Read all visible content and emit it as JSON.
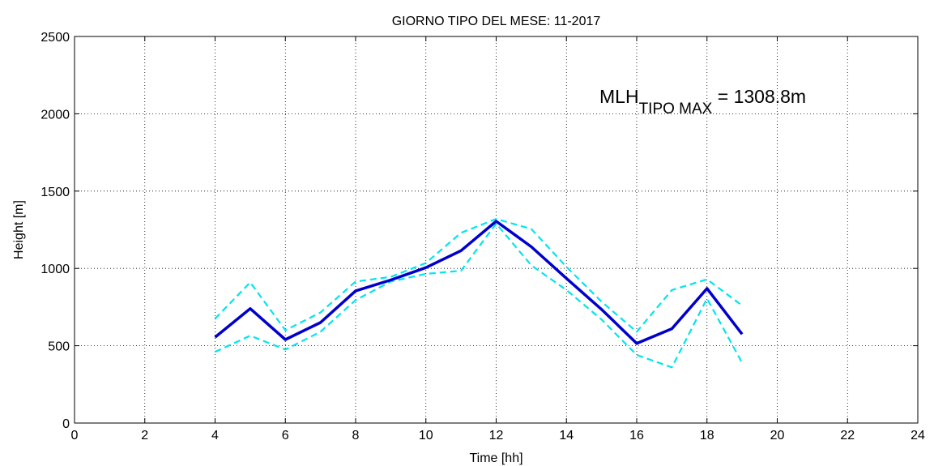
{
  "chart_data": {
    "type": "line",
    "title": "GIORNO TIPO DEL MESE:  11-2017",
    "xlabel": "Time [hh]",
    "ylabel": "Height [m]",
    "xlim": [
      0,
      24
    ],
    "ylim": [
      0,
      2500
    ],
    "xticks": [
      0,
      2,
      4,
      6,
      8,
      10,
      12,
      14,
      16,
      18,
      20,
      22,
      24
    ],
    "yticks": [
      0,
      500,
      1000,
      1500,
      2000,
      2500
    ],
    "grid": true,
    "x": [
      4,
      5,
      6,
      7,
      8,
      9,
      10,
      11,
      12,
      13,
      14,
      15,
      16,
      17,
      18,
      19
    ],
    "series": [
      {
        "style": "solid",
        "color": "#0000cc",
        "values": [
          555,
          740,
          540,
          650,
          855,
          925,
          1005,
          1115,
          1305,
          1140,
          935,
          735,
          515,
          610,
          870,
          575
        ]
      },
      {
        "style": "dashed",
        "color": "#00e5ee",
        "values": [
          675,
          910,
          600,
          715,
          915,
          945,
          1035,
          1230,
          1320,
          1255,
          1010,
          785,
          590,
          860,
          930,
          760
        ]
      },
      {
        "style": "dashed",
        "color": "#00e5ee",
        "values": [
          460,
          565,
          475,
          590,
          795,
          915,
          965,
          985,
          1290,
          1020,
          860,
          670,
          440,
          360,
          805,
          390
        ]
      }
    ],
    "annotation": {
      "main": "MLH",
      "sub": "TIPO MAX",
      "value": " = 1308.8m"
    }
  }
}
